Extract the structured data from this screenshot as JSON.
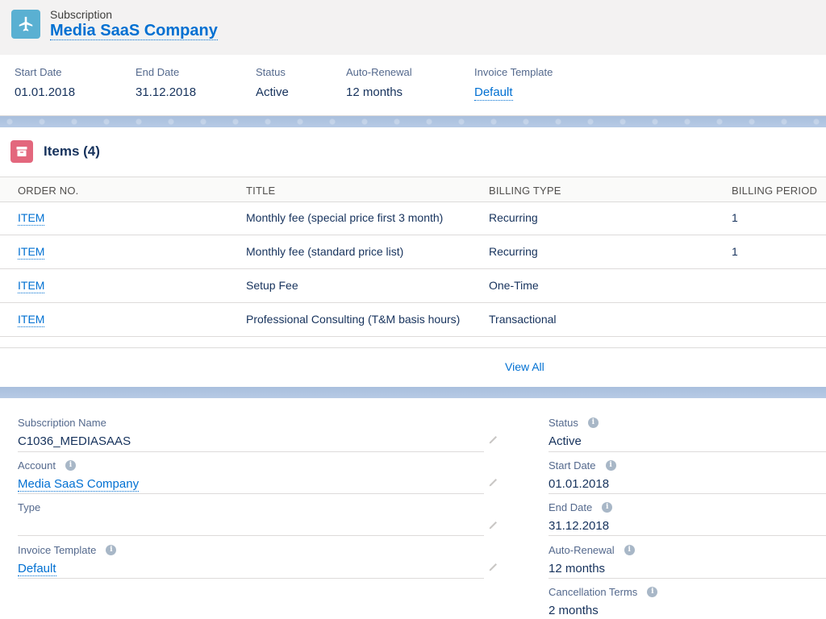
{
  "header": {
    "object_type": "Subscription",
    "record_name": "Media SaaS Company",
    "icon": "plane-icon"
  },
  "highlights": [
    {
      "label": "Start Date",
      "value": "01.01.2018",
      "link": false
    },
    {
      "label": "End Date",
      "value": "31.12.2018",
      "link": false
    },
    {
      "label": "Status",
      "value": "Active",
      "link": false
    },
    {
      "label": "Auto-Renewal",
      "value": "12 months",
      "link": false
    },
    {
      "label": "Invoice Template",
      "value": "Default",
      "link": true
    }
  ],
  "items": {
    "title": "Items (4)",
    "icon": "archive-box-icon",
    "columns": [
      "ORDER NO.",
      "TITLE",
      "BILLING TYPE",
      "BILLING PERIOD"
    ],
    "rows": [
      {
        "order_no": "ITEM",
        "title": "Monthly fee (special price first 3 month)",
        "billing_type": "Recurring",
        "billing_period": "1"
      },
      {
        "order_no": "ITEM",
        "title": "Monthly fee (standard price list)",
        "billing_type": "Recurring",
        "billing_period": "1"
      },
      {
        "order_no": "ITEM",
        "title": "Setup Fee",
        "billing_type": "One-Time",
        "billing_period": ""
      },
      {
        "order_no": "ITEM",
        "title": "Professional Consulting (T&M basis hours)",
        "billing_type": "Transactional",
        "billing_period": ""
      }
    ],
    "view_all": "View All"
  },
  "details": {
    "left": [
      {
        "label": "Subscription Name",
        "value": "C1036_MEDIASAAS"
      },
      {
        "label": "Account",
        "value": "Media SaaS Company"
      },
      {
        "label": "Type",
        "value": ""
      },
      {
        "label": "Invoice Template",
        "value": "Default"
      }
    ],
    "right": [
      {
        "label": "Status",
        "value": "Active"
      },
      {
        "label": "Start Date",
        "value": "01.01.2018"
      },
      {
        "label": "End Date",
        "value": "31.12.2018"
      },
      {
        "label": "Auto-Renewal",
        "value": "12 months"
      },
      {
        "label": "Cancellation Terms",
        "value": "2 months"
      }
    ],
    "info_glyph": "i"
  },
  "colors": {
    "accent_link": "#0070d2",
    "subscription_icon_bg": "#5ab0d2",
    "items_icon_bg": "#e3677d",
    "text_primary": "#16325c",
    "label_gray": "#54698d"
  }
}
